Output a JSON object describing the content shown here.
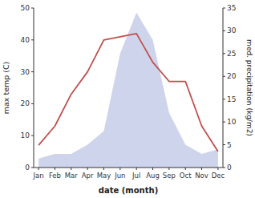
{
  "chart_data": {
    "type": "line",
    "categories": [
      "Jan",
      "Feb",
      "Mar",
      "Apr",
      "May",
      "Jun",
      "Jul",
      "Aug",
      "Sep",
      "Oct",
      "Nov",
      "Dec"
    ],
    "series": [
      {
        "type": "area",
        "axis": "y2",
        "color": "#c5cce8",
        "values": [
          2,
          3,
          3,
          5,
          8,
          25,
          34,
          28,
          12,
          5,
          3,
          4
        ]
      },
      {
        "type": "line",
        "color": "#c0504d",
        "values": [
          7,
          13,
          23,
          30,
          40,
          41,
          42,
          33,
          27,
          27,
          13,
          5
        ]
      }
    ],
    "xlabel": "date (month)",
    "ylabel": "max temp (C)",
    "y2label": "med. precipitation (kg/m2)",
    "ylim": [
      0,
      50
    ],
    "yticks": [
      0,
      10,
      20,
      30,
      40,
      50
    ],
    "y2lim": [
      0,
      35
    ],
    "y2ticks": [
      0,
      5,
      10,
      15,
      20,
      25,
      30,
      35
    ],
    "grid": false
  }
}
